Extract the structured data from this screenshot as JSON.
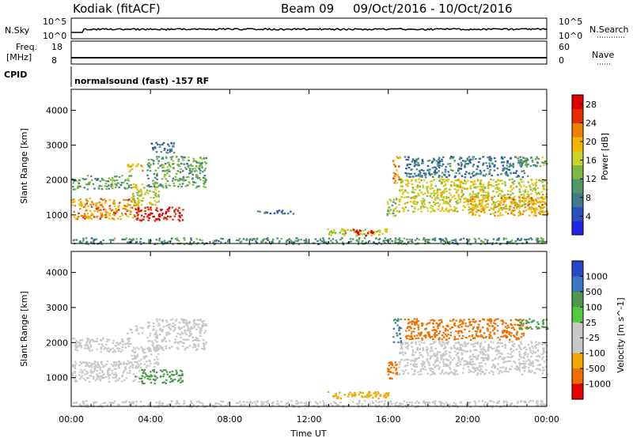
{
  "header": {
    "station": "Kodiak (fitACF)",
    "beam": "Beam 09",
    "date_range": "09/Oct/2016 - 10/Oct/2016"
  },
  "info_panels": {
    "nsky_label": "N.Sky",
    "nsky_ticks": [
      "10^5",
      "10^0"
    ],
    "nsearch_label": "N.Search",
    "nsearch_ticks": [
      "10^5",
      "10^0"
    ],
    "freq_label_1": "Freq.",
    "freq_label_2": "[MHz]",
    "freq_ticks": [
      "18",
      "8"
    ],
    "nave_label": "Nave",
    "nave_ticks": [
      "60",
      "0"
    ],
    "cpid_label": "CPID",
    "cpid_text": "normalsound (fast) -157 RF"
  },
  "colors": {
    "velocity_stops": [
      "#2847c9",
      "#3a74c2",
      "#4d9a4f",
      "#55c841",
      "#c8c8c8",
      "#c8c8c8",
      "#f5a600",
      "#f06e00",
      "#e60000"
    ],
    "power_stops": [
      "#1e23e6",
      "#2a4fbf",
      "#3f7a8a",
      "#4f9966",
      "#7fb845",
      "#c8d22a",
      "#f2b800",
      "#f07f00",
      "#e82a00",
      "#e00000"
    ]
  },
  "chart_data": [
    {
      "type": "heatmap",
      "name": "power",
      "ylabel": "Slant Range [km]",
      "yticks": [
        "1000",
        "2000",
        "3000",
        "4000"
      ],
      "ylim": [
        180,
        4600
      ],
      "xlim": [
        0,
        24
      ],
      "colorbar_label": "Power [dB]",
      "colorbar_ticks": [
        "4",
        "8",
        "12",
        "16",
        "20",
        "24",
        "28"
      ],
      "colorbar_range": [
        0,
        30
      ],
      "regions": [
        {
          "t0": 0.0,
          "t1": 3.4,
          "r0": 900,
          "r1": 1500,
          "value": 20
        },
        {
          "t0": 3.2,
          "t1": 5.6,
          "r0": 850,
          "r1": 1250,
          "value": 27
        },
        {
          "t0": 0.0,
          "t1": 3.0,
          "r0": 1750,
          "r1": 2150,
          "value": 10
        },
        {
          "t0": 3.0,
          "t1": 4.4,
          "r0": 1300,
          "r1": 1900,
          "value": 15
        },
        {
          "t0": 3.8,
          "t1": 6.8,
          "r0": 1800,
          "r1": 2700,
          "value": 10
        },
        {
          "t0": 2.8,
          "t1": 3.6,
          "r0": 2250,
          "r1": 2500,
          "value": 18
        },
        {
          "t0": 4.0,
          "t1": 5.2,
          "r0": 2800,
          "r1": 3100,
          "value": 6
        },
        {
          "t0": 9.2,
          "t1": 11.6,
          "r0": 1050,
          "r1": 1150,
          "value": 6
        },
        {
          "t0": 12.8,
          "t1": 16.0,
          "r0": 420,
          "r1": 620,
          "value": 14
        },
        {
          "t0": 14.2,
          "t1": 15.2,
          "r0": 420,
          "r1": 600,
          "value": 29
        },
        {
          "t0": 0.0,
          "t1": 24.0,
          "r0": 180,
          "r1": 360,
          "value": 8
        },
        {
          "t0": 15.9,
          "t1": 16.4,
          "r0": 950,
          "r1": 1500,
          "value": 12
        },
        {
          "t0": 16.2,
          "t1": 16.6,
          "r0": 1900,
          "r1": 2700,
          "value": 20
        },
        {
          "t0": 16.5,
          "t1": 24.0,
          "r0": 1100,
          "r1": 2050,
          "value": 15
        },
        {
          "t0": 20.0,
          "t1": 24.0,
          "r0": 1000,
          "r1": 1550,
          "value": 19
        },
        {
          "t0": 16.8,
          "t1": 23.0,
          "r0": 2100,
          "r1": 2700,
          "value": 6
        },
        {
          "t0": 22.5,
          "t1": 24.0,
          "r0": 2400,
          "r1": 2700,
          "value": 10
        }
      ]
    },
    {
      "type": "heatmap",
      "name": "velocity",
      "ylabel": "Slant Range [km]",
      "yticks": [
        "1000",
        "2000",
        "3000",
        "4000"
      ],
      "ylim": [
        180,
        4600
      ],
      "xlim": [
        0,
        24
      ],
      "xlabel": "Time UT",
      "xticks": [
        "00:00",
        "04:00",
        "08:00",
        "12:00",
        "16:00",
        "20:00",
        "00:00"
      ],
      "colorbar_label": "Velocity [m s^-1]",
      "colorbar_ticks": [
        "-1000",
        "-500",
        "-100",
        "-25",
        "25",
        "100",
        "500",
        "1000"
      ],
      "regions": [
        {
          "t0": 0.0,
          "t1": 3.4,
          "r0": 900,
          "r1": 1500,
          "value": 0
        },
        {
          "t0": 3.2,
          "t1": 5.6,
          "r0": 850,
          "r1": 1250,
          "value": 150
        },
        {
          "t0": 3.0,
          "t1": 4.4,
          "r0": 1300,
          "r1": 1900,
          "value": 0
        },
        {
          "t0": 3.8,
          "t1": 6.8,
          "r0": 1800,
          "r1": 2700,
          "value": 0
        },
        {
          "t0": 0.0,
          "t1": 3.0,
          "r0": 1750,
          "r1": 2150,
          "value": 0
        },
        {
          "t0": 2.8,
          "t1": 3.6,
          "r0": 2250,
          "r1": 2500,
          "value": 0
        },
        {
          "t0": 12.8,
          "t1": 16.0,
          "r0": 420,
          "r1": 620,
          "value": -150
        },
        {
          "t0": 0.0,
          "t1": 24.0,
          "r0": 180,
          "r1": 360,
          "value": 0
        },
        {
          "t0": 15.9,
          "t1": 16.4,
          "r0": 950,
          "r1": 1500,
          "value": -300
        },
        {
          "t0": 16.5,
          "t1": 24.0,
          "r0": 1100,
          "r1": 2050,
          "value": 0
        },
        {
          "t0": 16.2,
          "t1": 16.6,
          "r0": 2000,
          "r1": 2700,
          "value": 300
        },
        {
          "t0": 16.8,
          "t1": 23.0,
          "r0": 2100,
          "r1": 2700,
          "value": -300
        },
        {
          "t0": 22.5,
          "t1": 24.0,
          "r0": 2400,
          "r1": 2700,
          "value": 200
        }
      ]
    }
  ]
}
